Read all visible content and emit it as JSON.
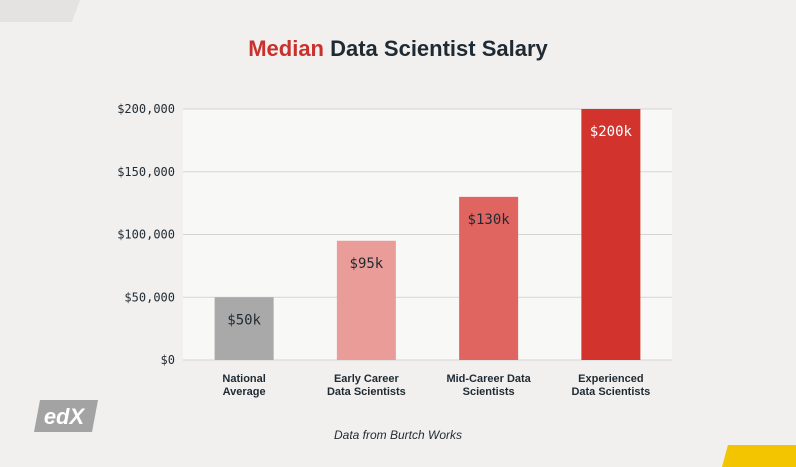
{
  "title": {
    "highlight": "Median",
    "rest": " Data Scientist Salary"
  },
  "source": "Data from Burtch Works",
  "logo": {
    "text": "edX"
  },
  "colors": {
    "accent": "#c8312d",
    "grid": "#d6d5d3",
    "plot_bg": "#f8f8f7",
    "text": "#1f2a33"
  },
  "chart_data": {
    "type": "bar",
    "title": "Median Data Scientist Salary",
    "xlabel": "",
    "ylabel": "",
    "ylim": [
      0,
      200000
    ],
    "yticks": [
      0,
      50000,
      100000,
      150000,
      200000
    ],
    "ytick_labels": [
      "$0",
      "$50,000",
      "$100,000",
      "$150,000",
      "$200,000"
    ],
    "grid": true,
    "categories": [
      [
        "National",
        "Average"
      ],
      [
        "Early Career",
        "Data Scientists"
      ],
      [
        "Mid-Career Data",
        "Scientists"
      ],
      [
        "Experienced",
        "Data Scientists"
      ]
    ],
    "values": [
      50000,
      95000,
      130000,
      200000
    ],
    "value_labels": [
      "$50k",
      "$95k",
      "$130k",
      "$200k"
    ],
    "bar_colors": [
      "#a9a9a9",
      "#ea9c98",
      "#e06560",
      "#d2332d"
    ],
    "label_colors": [
      "#1f2a33",
      "#1f2a33",
      "#1f2a33",
      "#ffffff"
    ]
  }
}
